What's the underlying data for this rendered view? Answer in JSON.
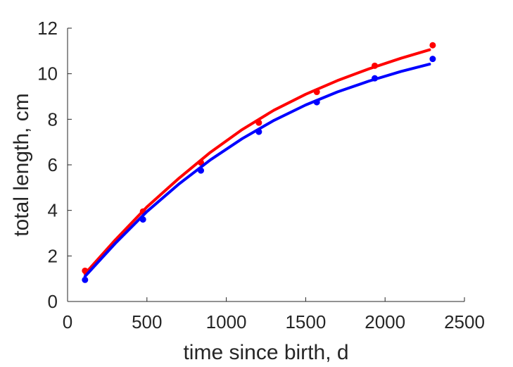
{
  "chart_data": {
    "type": "scatter",
    "title": "",
    "xlabel": "time since birth, d",
    "ylabel": "total length, cm",
    "xlim": [
      0,
      2500
    ],
    "ylim": [
      0,
      12
    ],
    "xticks": [
      0,
      500,
      1000,
      1500,
      2000,
      2500
    ],
    "yticks": [
      0,
      2,
      4,
      6,
      8,
      10,
      12
    ],
    "grid": false,
    "legend": "none",
    "series": [
      {
        "color": "#ff0000",
        "points": {
          "x": [
            110,
            475,
            840,
            1205,
            1570,
            1935,
            2300
          ],
          "y": [
            1.35,
            3.95,
            6.1,
            7.85,
            9.2,
            10.35,
            11.25
          ]
        },
        "fit": {
          "x": [
            110,
            300,
            500,
            700,
            900,
            1100,
            1300,
            1500,
            1700,
            1900,
            2100,
            2280
          ],
          "y": [
            1.22,
            2.7,
            4.15,
            5.4,
            6.55,
            7.55,
            8.4,
            9.1,
            9.7,
            10.22,
            10.68,
            11.05
          ]
        }
      },
      {
        "color": "#0000ff",
        "points": {
          "x": [
            110,
            475,
            840,
            1205,
            1570,
            1935,
            2300
          ],
          "y": [
            0.95,
            3.6,
            5.75,
            7.45,
            8.75,
            9.8,
            10.65
          ]
        },
        "fit": {
          "x": [
            110,
            300,
            500,
            700,
            900,
            1100,
            1300,
            1500,
            1700,
            1900,
            2100,
            2280
          ],
          "y": [
            1.1,
            2.55,
            3.95,
            5.15,
            6.22,
            7.15,
            7.95,
            8.63,
            9.2,
            9.68,
            10.1,
            10.42
          ]
        }
      }
    ]
  }
}
